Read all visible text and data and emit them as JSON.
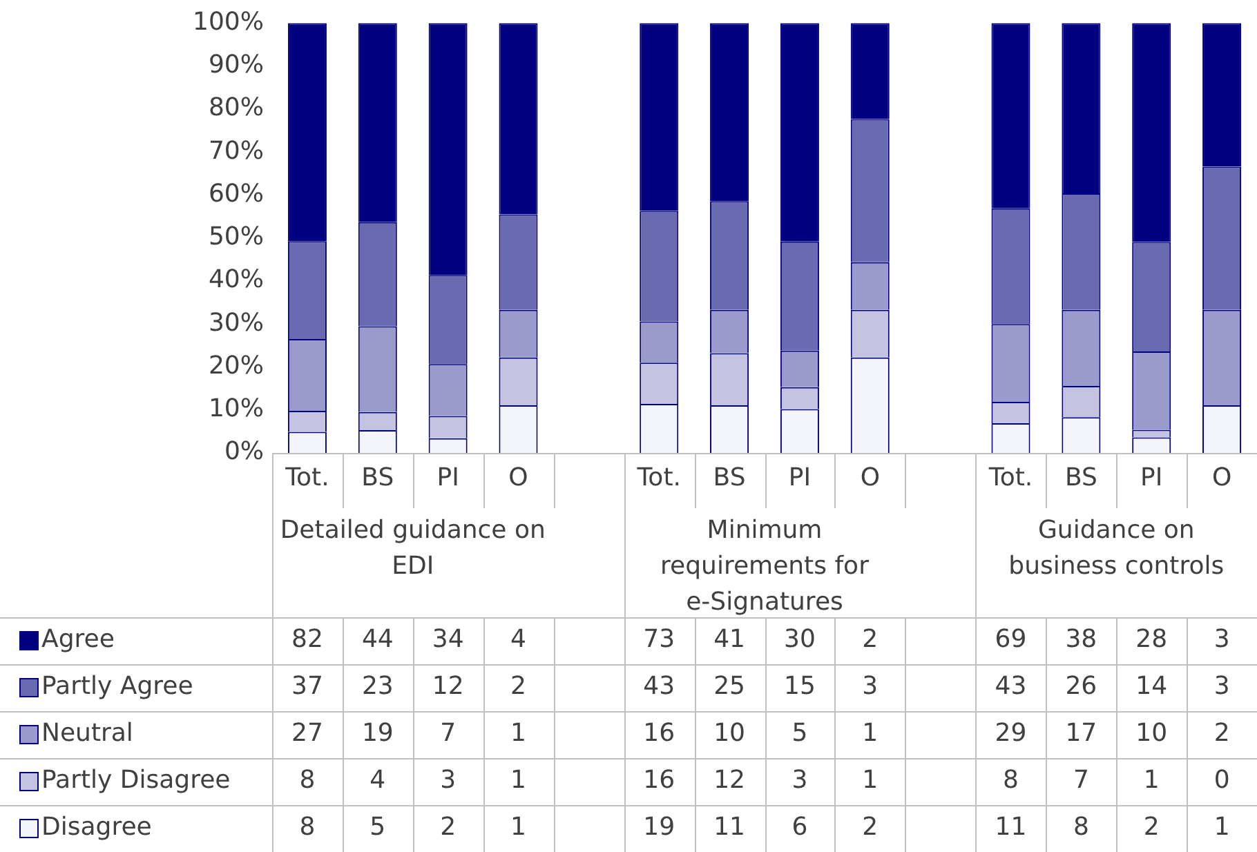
{
  "chart_data": [
    {
      "type": "bar",
      "stacked": true,
      "legend": "bottom",
      "grid": false,
      "categories": [
        "Tot.",
        "BS",
        "PI",
        "O",
        null,
        "Tot.",
        "BS",
        "PI",
        "O",
        null,
        "Tot.",
        "BS",
        "PI",
        "O"
      ],
      "annotations": [
        "Detailed guidance on EDI",
        "Minimum requirements for e-Signatures",
        "Guidance on business controls"
      ],
      "ylim": [
        0,
        100
      ],
      "yticks": [
        {
          "value": 0,
          "label": "0%"
        },
        {
          "value": 10,
          "label": "10%"
        },
        {
          "value": 20,
          "label": "20%"
        },
        {
          "value": 30,
          "label": "30%"
        },
        {
          "value": 40,
          "label": "40%"
        },
        {
          "value": 50,
          "label": "50%"
        },
        {
          "value": 60,
          "label": "60%"
        },
        {
          "value": 70,
          "label": "70%"
        },
        {
          "value": 80,
          "label": "80%"
        },
        {
          "value": 90,
          "label": "90%"
        },
        {
          "value": 100,
          "label": "100%"
        }
      ],
      "series": [
        {
          "name": "Disagree",
          "color": "#f4f4fb",
          "values": [
            4.9,
            5.3,
            3.4,
            11.1,
            null,
            11.4,
            11.1,
            10.2,
            22.2,
            null,
            6.9,
            8.3,
            3.6,
            11.1
          ]
        },
        {
          "name": "Partly Disagree",
          "color": "#c4c4e2",
          "values": [
            4.9,
            4.2,
            5.2,
            11.1,
            null,
            9.6,
            12.1,
            5.1,
            11.1,
            null,
            5.0,
            7.3,
            1.8,
            0
          ]
        },
        {
          "name": "Neutral",
          "color": "#9a9acc",
          "values": [
            16.7,
            20.0,
            12.1,
            11.1,
            null,
            9.6,
            10.1,
            8.5,
            11.1,
            null,
            18.1,
            17.7,
            18.2,
            22.2
          ]
        },
        {
          "name": "Partly Agree",
          "color": "#6a6ab0",
          "values": [
            22.8,
            24.2,
            20.7,
            22.2,
            null,
            25.7,
            25.3,
            25.4,
            33.3,
            null,
            26.9,
            27.1,
            25.5,
            33.3
          ]
        },
        {
          "name": "Agree",
          "color": "#000080",
          "values": [
            50.7,
            46.3,
            58.6,
            44.5,
            null,
            43.7,
            41.4,
            50.8,
            22.3,
            null,
            43.1,
            39.6,
            50.9,
            33.4
          ]
        }
      ]
    },
    {
      "type": "heatmap",
      "data_labels": true,
      "categories": [
        null,
        null,
        null,
        null,
        null,
        null,
        null,
        null,
        null,
        null,
        null,
        null,
        null,
        null
      ],
      "y_categories": [
        null,
        null,
        null,
        null,
        null
      ],
      "cells": [
        [
          82,
          44,
          34,
          4,
          null,
          73,
          41,
          30,
          2,
          null,
          69,
          38,
          28,
          3
        ],
        [
          37,
          23,
          12,
          2,
          null,
          43,
          25,
          15,
          3,
          null,
          43,
          26,
          14,
          3
        ],
        [
          27,
          19,
          7,
          1,
          null,
          16,
          10,
          5,
          1,
          null,
          29,
          17,
          10,
          2
        ],
        [
          8,
          4,
          3,
          1,
          null,
          16,
          12,
          3,
          1,
          null,
          8,
          7,
          1,
          0
        ],
        [
          8,
          5,
          2,
          1,
          null,
          19,
          11,
          6,
          2,
          null,
          11,
          8,
          2,
          1
        ]
      ]
    }
  ]
}
